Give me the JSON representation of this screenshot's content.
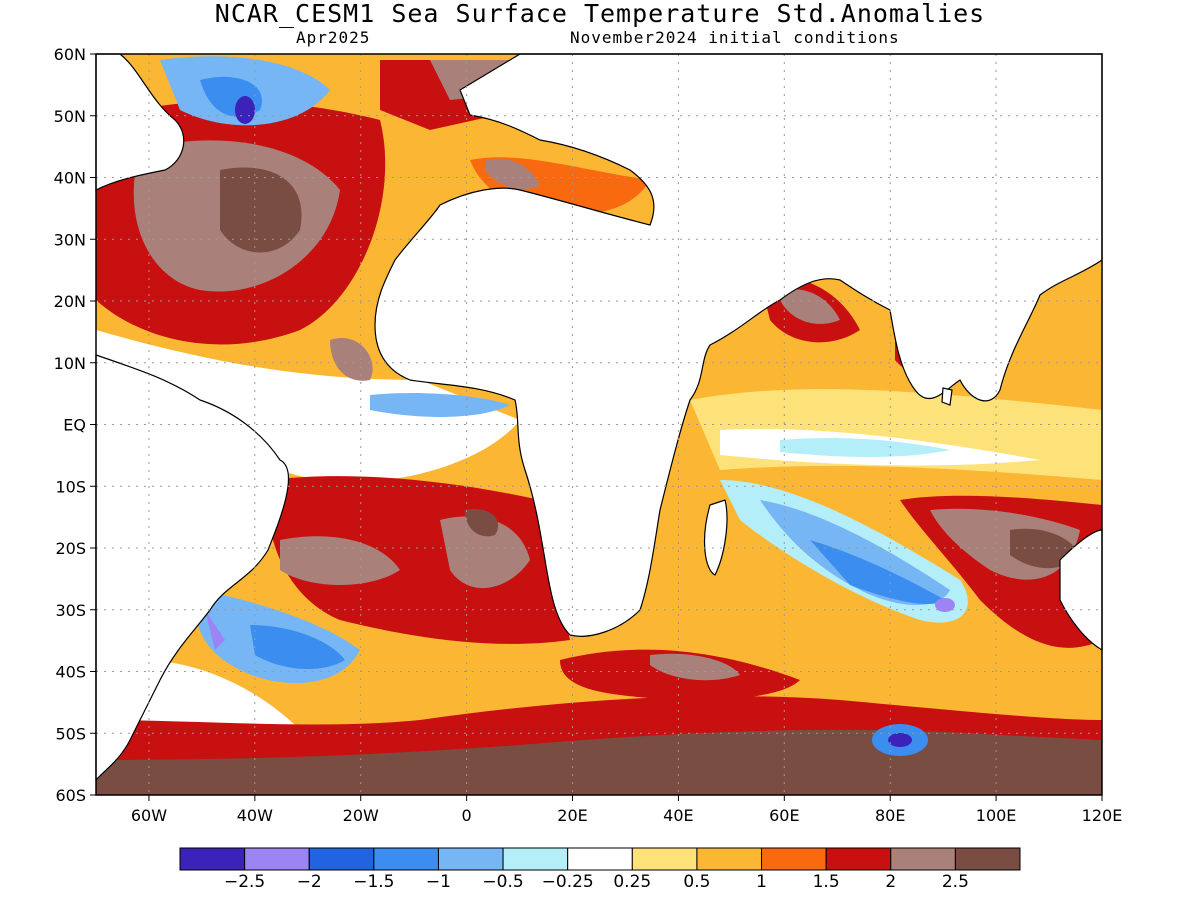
{
  "title": "NCAR_CESM1 Sea Surface Temperature Std.Anomalies",
  "subtitle_left": "Apr2025",
  "subtitle_right": "November2024 initial conditions",
  "map": {
    "lon_range": [
      -70,
      120
    ],
    "lat_range": [
      -60,
      60
    ],
    "lat_ticks": [
      "60N",
      "50N",
      "40N",
      "30N",
      "20N",
      "10N",
      "EQ",
      "10S",
      "20S",
      "30S",
      "40S",
      "50S",
      "60S"
    ],
    "lon_ticks": [
      "60W",
      "40W",
      "20W",
      "0",
      "20E",
      "40E",
      "60E",
      "80E",
      "100E",
      "120E"
    ],
    "grid": "dotted"
  },
  "colorbar": {
    "colors": [
      "#3b22b8",
      "#9c84f4",
      "#2163e0",
      "#3b8ef0",
      "#77b6f4",
      "#b4eef8",
      "#ffffff",
      "#fde27a",
      "#fbb734",
      "#f96a10",
      "#c81010",
      "#a9817a",
      "#7a4d43"
    ],
    "labels": [
      "−2.5",
      "−2",
      "−1.5",
      "−1",
      "−0.5",
      "−0.25",
      "0.25",
      "0.5",
      "1",
      "1.5",
      "2",
      "2.5"
    ]
  }
}
